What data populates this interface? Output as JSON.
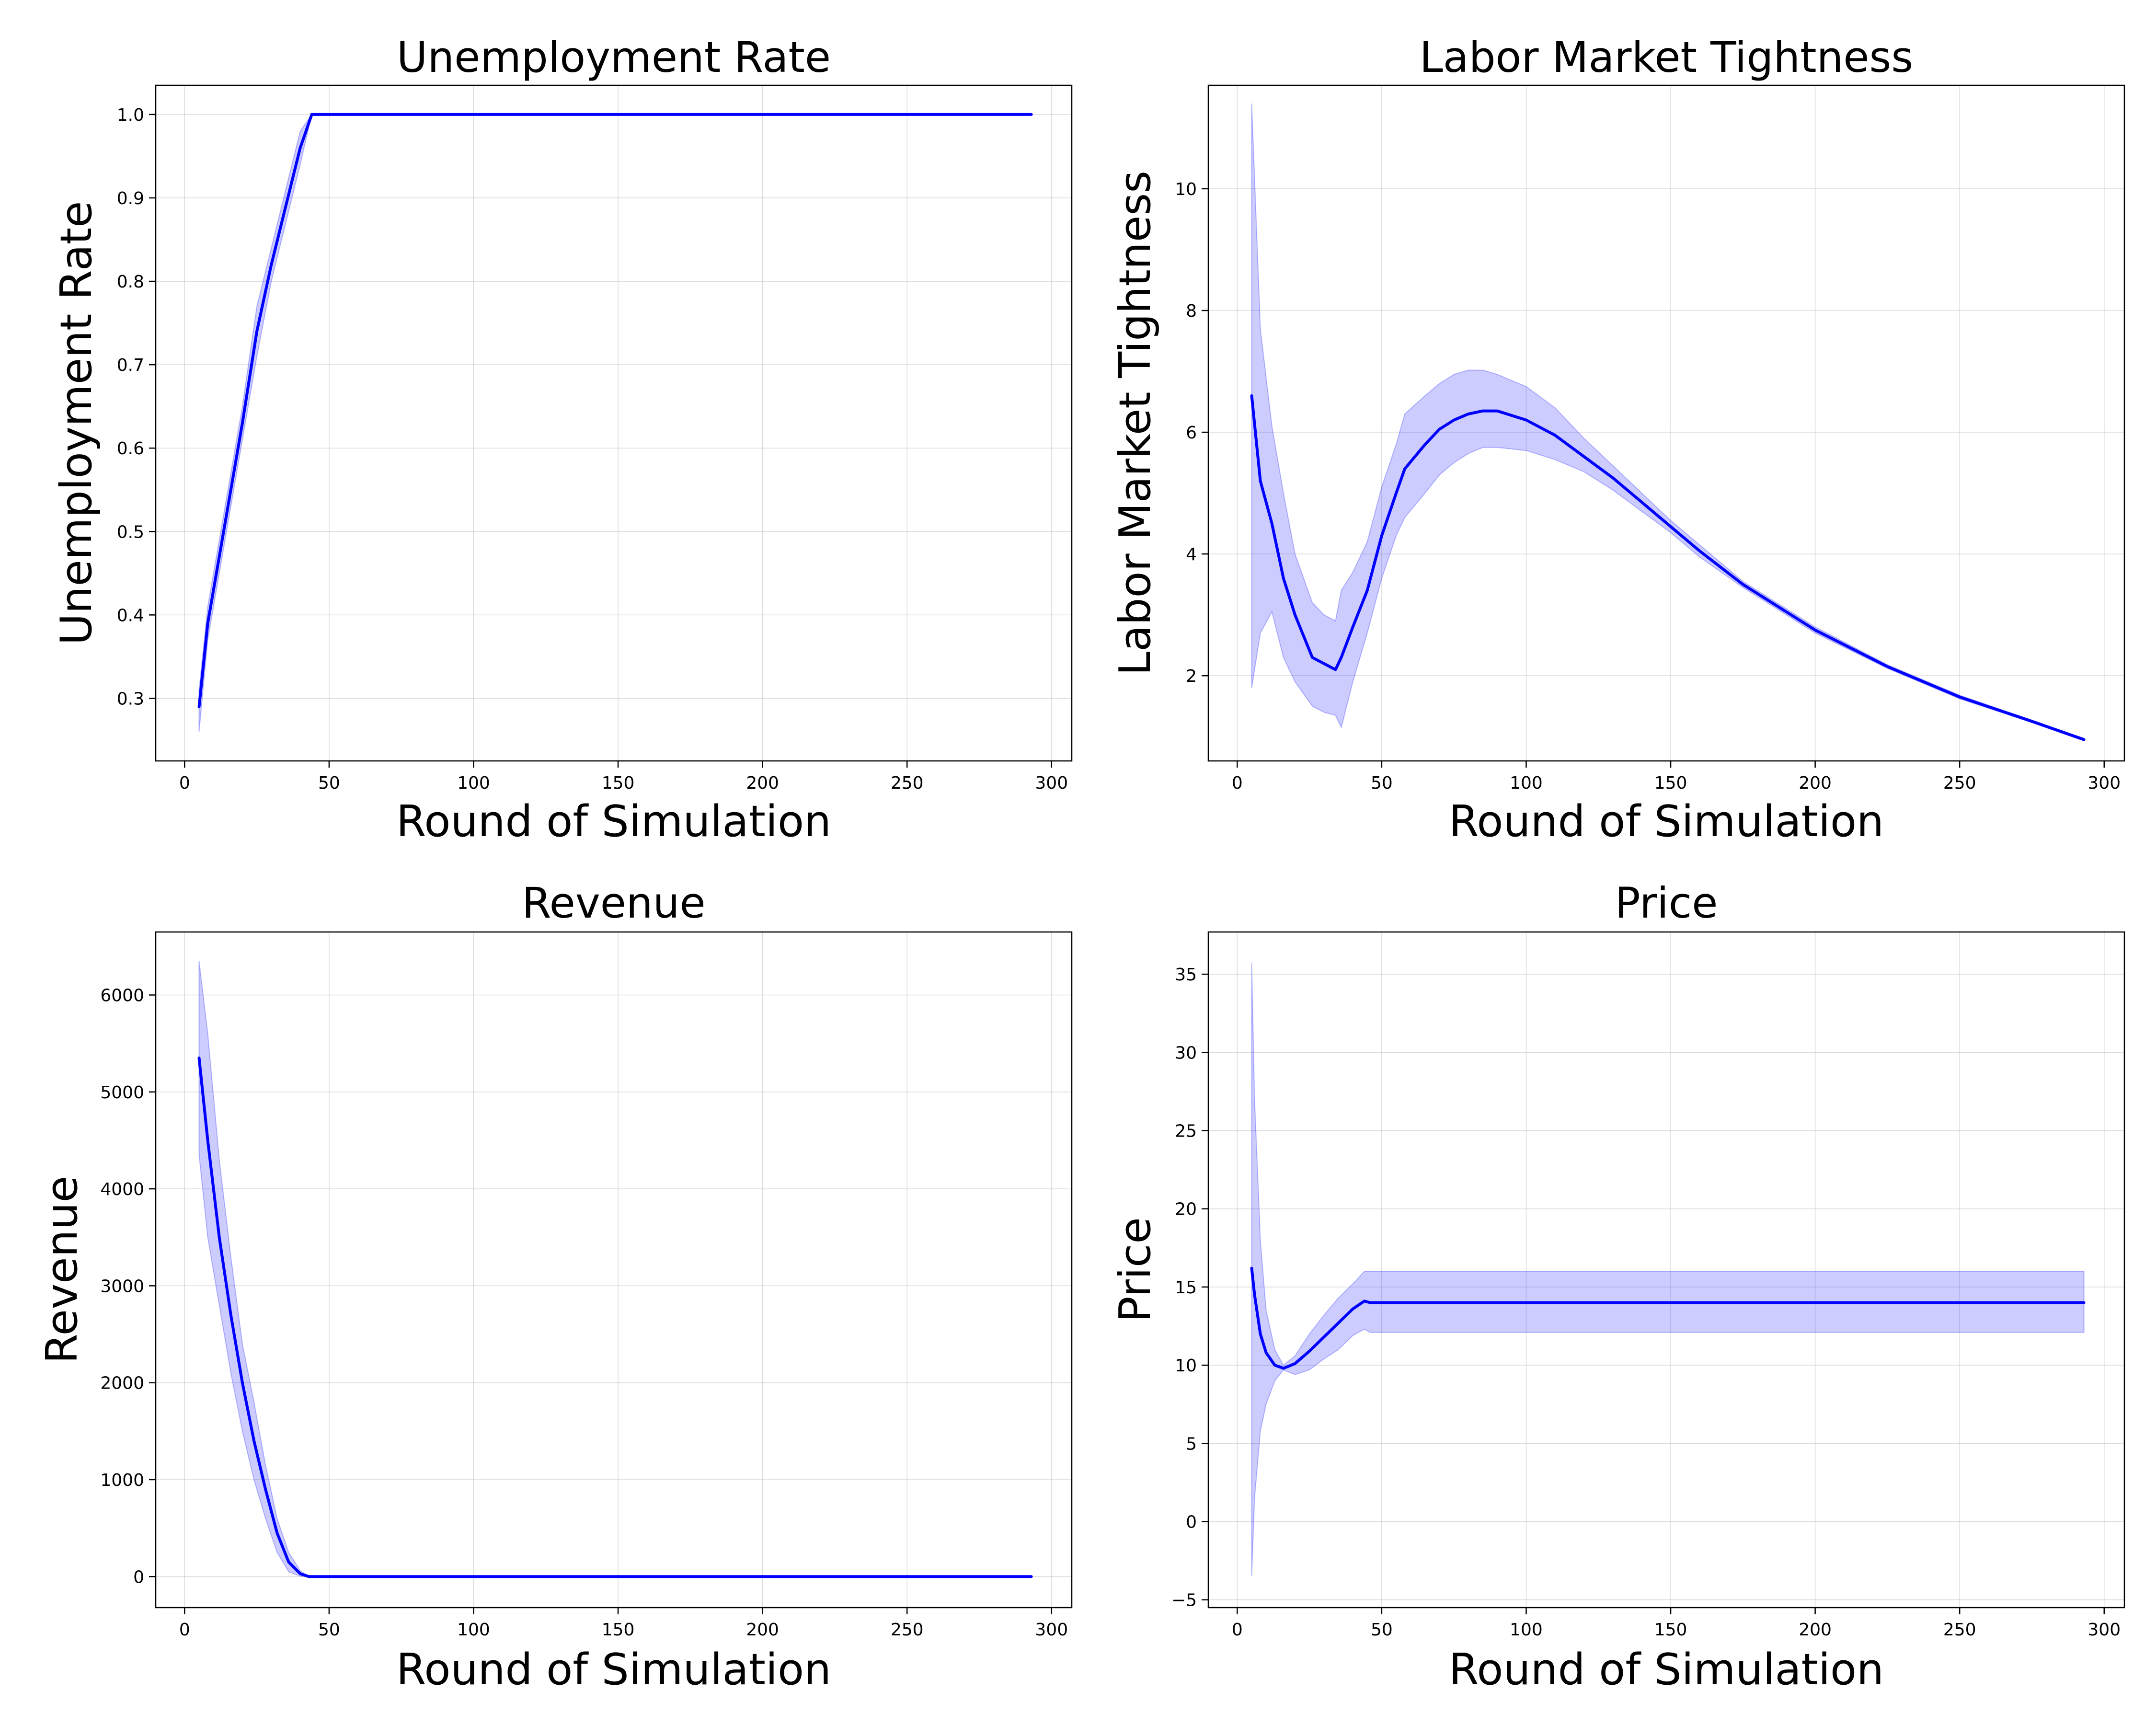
{
  "colors": {
    "line": "#0000ff",
    "band": "#0000ff",
    "band_opacity": 0.2,
    "grid": "#b0b0b0"
  },
  "chart_data": [
    {
      "id": "unemployment",
      "type": "line",
      "title": "Unemployment Rate",
      "xlabel": "Round of Simulation",
      "ylabel": "Unemployment Rate",
      "xlim": [
        -10,
        307
      ],
      "ylim": [
        0.225,
        1.035
      ],
      "xticks": [
        0,
        50,
        100,
        150,
        200,
        250,
        300
      ],
      "yticks": [
        0.3,
        0.4,
        0.5,
        0.6,
        0.7,
        0.8,
        0.9,
        1.0
      ],
      "ytick_decimals": 1,
      "grid": true,
      "x": [
        5,
        8,
        12,
        16,
        20,
        25,
        30,
        35,
        40,
        44,
        60,
        100,
        150,
        200,
        250,
        293
      ],
      "y": [
        0.29,
        0.39,
        0.47,
        0.55,
        0.63,
        0.74,
        0.82,
        0.89,
        0.96,
        1.0,
        1.0,
        1.0,
        1.0,
        1.0,
        1.0,
        1.0
      ],
      "lower": [
        0.26,
        0.37,
        0.45,
        0.53,
        0.61,
        0.71,
        0.8,
        0.87,
        0.94,
        1.0,
        1.0,
        1.0,
        1.0,
        1.0,
        1.0,
        1.0
      ],
      "upper": [
        0.31,
        0.41,
        0.49,
        0.57,
        0.65,
        0.77,
        0.84,
        0.91,
        0.98,
        1.0,
        1.0,
        1.0,
        1.0,
        1.0,
        1.0,
        1.0
      ]
    },
    {
      "id": "tightness",
      "type": "line",
      "title": "Labor Market Tightness",
      "xlabel": "Round of Simulation",
      "ylabel": "Labor Market Tightness",
      "xlim": [
        -10,
        307
      ],
      "ylim": [
        0.6,
        11.7
      ],
      "xticks": [
        0,
        50,
        100,
        150,
        200,
        250,
        300
      ],
      "yticks": [
        2,
        4,
        6,
        8,
        10
      ],
      "ytick_decimals": 0,
      "grid": true,
      "x": [
        5,
        8,
        12,
        16,
        20,
        26,
        30,
        34,
        36,
        40,
        45,
        50,
        55,
        58,
        65,
        70,
        75,
        80,
        85,
        90,
        100,
        110,
        120,
        130,
        140,
        150,
        160,
        175,
        200,
        225,
        250,
        275,
        293
      ],
      "y": [
        6.6,
        5.2,
        4.5,
        3.6,
        3.0,
        2.3,
        2.2,
        2.1,
        2.3,
        2.8,
        3.4,
        4.3,
        5.0,
        5.4,
        5.8,
        6.05,
        6.2,
        6.3,
        6.35,
        6.35,
        6.2,
        5.95,
        5.6,
        5.25,
        4.85,
        4.45,
        4.05,
        3.5,
        2.75,
        2.15,
        1.65,
        1.25,
        0.95
      ],
      "lower": [
        1.8,
        2.7,
        3.05,
        2.3,
        1.9,
        1.5,
        1.4,
        1.35,
        1.15,
        1.9,
        2.7,
        3.6,
        4.3,
        4.6,
        5.0,
        5.3,
        5.5,
        5.65,
        5.75,
        5.75,
        5.7,
        5.55,
        5.35,
        5.05,
        4.7,
        4.35,
        3.95,
        3.45,
        2.7,
        2.12,
        1.62,
        1.23,
        0.93
      ],
      "upper": [
        11.4,
        7.7,
        6.1,
        5.0,
        4.0,
        3.2,
        3.0,
        2.9,
        3.4,
        3.7,
        4.2,
        5.1,
        5.8,
        6.3,
        6.6,
        6.8,
        6.95,
        7.02,
        7.02,
        6.95,
        6.75,
        6.4,
        5.9,
        5.45,
        5.0,
        4.55,
        4.15,
        3.55,
        2.8,
        2.18,
        1.68,
        1.27,
        0.97
      ]
    },
    {
      "id": "revenue",
      "type": "line",
      "title": "Revenue",
      "xlabel": "Round of Simulation",
      "ylabel": "Revenue",
      "xlim": [
        -10,
        307
      ],
      "ylim": [
        -320,
        6650
      ],
      "xticks": [
        0,
        50,
        100,
        150,
        200,
        250,
        300
      ],
      "yticks": [
        0,
        1000,
        2000,
        3000,
        4000,
        5000,
        6000
      ],
      "ytick_decimals": 0,
      "grid": true,
      "x": [
        5,
        8,
        12,
        16,
        20,
        24,
        28,
        32,
        36,
        40,
        43,
        60,
        100,
        150,
        200,
        250,
        293
      ],
      "y": [
        5350,
        4500,
        3500,
        2700,
        2000,
        1400,
        900,
        450,
        150,
        30,
        0,
        0,
        0,
        0,
        0,
        0,
        0
      ],
      "lower": [
        4350,
        3500,
        2800,
        2100,
        1500,
        1000,
        600,
        250,
        50,
        5,
        0,
        0,
        0,
        0,
        0,
        0,
        0
      ],
      "upper": [
        6350,
        5600,
        4300,
        3300,
        2400,
        1800,
        1150,
        600,
        250,
        60,
        0,
        0,
        0,
        0,
        0,
        0,
        0
      ]
    },
    {
      "id": "price",
      "type": "line",
      "title": "Price",
      "xlabel": "Round of Simulation",
      "ylabel": "Price",
      "xlim": [
        -10,
        307
      ],
      "ylim": [
        -5.5,
        37.7
      ],
      "xticks": [
        0,
        50,
        100,
        150,
        200,
        250,
        300
      ],
      "yticks": [
        -5,
        0,
        5,
        10,
        15,
        20,
        25,
        30,
        35
      ],
      "ytick_decimals": 0,
      "grid": true,
      "x": [
        5,
        6,
        8,
        10,
        13,
        16,
        20,
        25,
        30,
        35,
        40,
        44,
        46,
        60,
        100,
        150,
        200,
        250,
        293
      ],
      "y": [
        16.2,
        14.5,
        12.0,
        10.8,
        10.0,
        9.8,
        10.1,
        10.9,
        11.8,
        12.7,
        13.6,
        14.1,
        14.0,
        14.0,
        14.0,
        14.0,
        14.0,
        14.0,
        14.0
      ],
      "lower": [
        -3.5,
        1.5,
        5.8,
        7.5,
        9.0,
        9.7,
        9.4,
        9.7,
        10.4,
        11.0,
        11.9,
        12.3,
        12.1,
        12.1,
        12.1,
        12.1,
        12.1,
        12.1,
        12.1
      ],
      "upper": [
        35.7,
        27.0,
        18.0,
        13.5,
        11.0,
        10.0,
        10.6,
        12.0,
        13.2,
        14.3,
        15.2,
        16.0,
        16.0,
        16.0,
        16.0,
        16.0,
        16.0,
        16.0,
        16.0
      ]
    }
  ]
}
